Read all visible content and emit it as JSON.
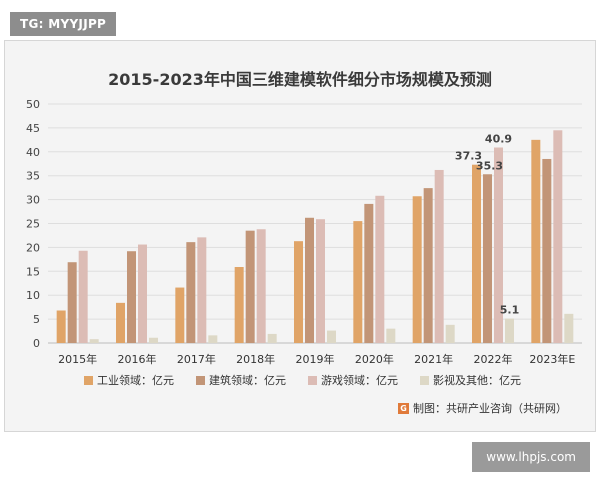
{
  "badge": "TG: MYYJJPP",
  "website": "www.lhpjs.com",
  "credit": {
    "icon": "G",
    "text": "制图：共研产业咨询（共研网）"
  },
  "chart_data": {
    "type": "bar",
    "title": "2015-2023年中国三维建模软件细分市场规模及预测",
    "xlabel": "",
    "ylabel": "",
    "ylim": [
      0,
      50
    ],
    "yticks": [
      0,
      5,
      10,
      15,
      20,
      25,
      30,
      35,
      40,
      45,
      50
    ],
    "grid": true,
    "legend_position": "bottom",
    "categories": [
      "2015年",
      "2016年",
      "2017年",
      "2018年",
      "2019年",
      "2020年",
      "2021年",
      "2022年",
      "2023年E"
    ],
    "series": [
      {
        "name": "工业领域：亿元",
        "color": "#e0a467",
        "values": [
          6.8,
          8.4,
          11.6,
          15.9,
          21.3,
          25.5,
          30.7,
          37.3,
          42.5
        ]
      },
      {
        "name": "建筑领域：亿元",
        "color": "#c29577",
        "values": [
          16.9,
          19.2,
          21.1,
          23.5,
          26.2,
          29.1,
          32.4,
          35.3,
          38.5
        ]
      },
      {
        "name": "游戏领域：亿元",
        "color": "#dcbcb5",
        "values": [
          19.3,
          20.6,
          22.1,
          23.8,
          25.9,
          30.8,
          36.2,
          40.9,
          44.5
        ]
      },
      {
        "name": "影视及其他：亿元",
        "color": "#ddd8c6",
        "values": [
          0.8,
          1.1,
          1.6,
          1.9,
          2.6,
          3.0,
          3.8,
          5.1,
          6.1
        ]
      }
    ],
    "data_labels": [
      {
        "series": 0,
        "index": 7,
        "text": "37.3"
      },
      {
        "series": 1,
        "index": 7,
        "text": "35.3"
      },
      {
        "series": 2,
        "index": 7,
        "text": "40.9"
      },
      {
        "series": 3,
        "index": 7,
        "text": "5.1"
      }
    ]
  }
}
